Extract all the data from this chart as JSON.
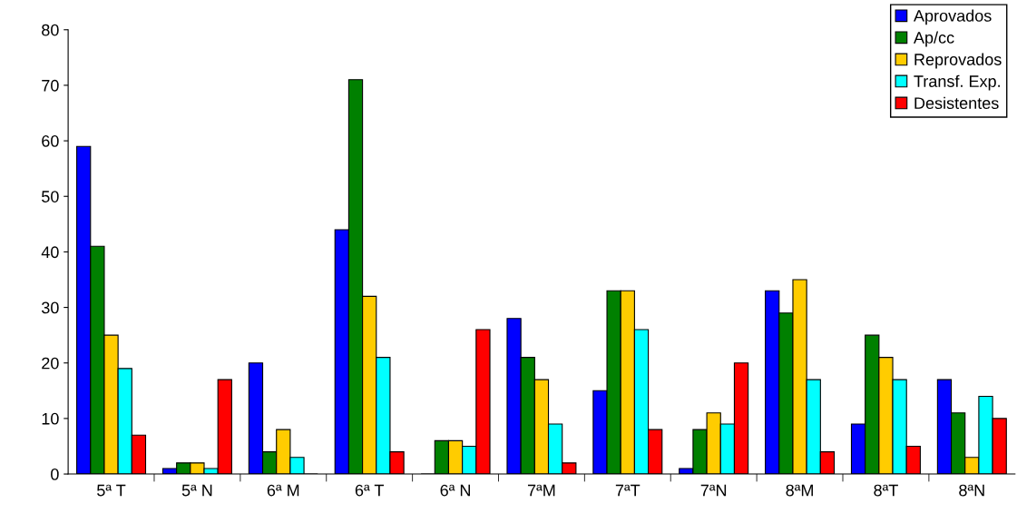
{
  "chart_data": {
    "type": "bar",
    "categories": [
      "5ª T",
      "5ª N",
      "6ª M",
      "6ª T",
      "6ª N",
      "7ªM",
      "7ªT",
      "7ªN",
      "8ªM",
      "8ªT",
      "8ªN"
    ],
    "series": [
      {
        "name": "Aprovados",
        "color": "#0000ff",
        "values": [
          59,
          1,
          20,
          44,
          0,
          28,
          15,
          1,
          33,
          9,
          17
        ]
      },
      {
        "name": "Ap/cc",
        "color": "#008000",
        "values": [
          41,
          2,
          4,
          71,
          6,
          21,
          33,
          8,
          29,
          25,
          11
        ]
      },
      {
        "name": "Reprovados",
        "color": "#ffcc00",
        "values": [
          25,
          2,
          8,
          32,
          6,
          17,
          33,
          11,
          35,
          21,
          3
        ]
      },
      {
        "name": "Transf. Exp.",
        "color": "#00ffff",
        "values": [
          19,
          1,
          3,
          21,
          5,
          9,
          26,
          9,
          17,
          17,
          14
        ]
      },
      {
        "name": "Desistentes",
        "color": "#ff0000",
        "values": [
          7,
          17,
          0,
          4,
          26,
          2,
          8,
          20,
          4,
          5,
          10
        ]
      }
    ],
    "ylim": [
      0,
      80
    ],
    "yticks": [
      0,
      10,
      20,
      30,
      40,
      50,
      60,
      70,
      80
    ],
    "grid": false,
    "legend": "top right"
  }
}
